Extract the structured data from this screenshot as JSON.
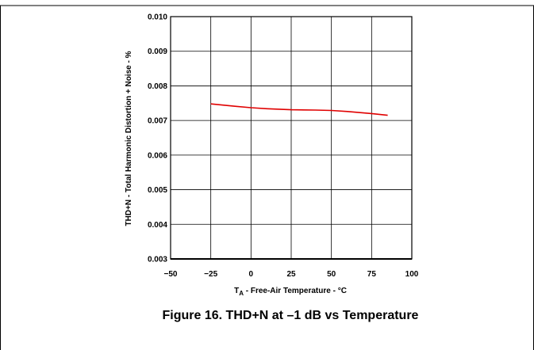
{
  "chart_data": {
    "type": "line",
    "title": "",
    "caption": "Figure 16. THD+N at –1 dB vs Temperature",
    "xlabel_main": "T",
    "xlabel_sub": "A",
    "xlabel_rest": " - Free-Air Temperature - °C",
    "ylabel": "THD+N - Total Harmonic Distortion + Noise - %",
    "xlim": [
      -50,
      100
    ],
    "ylim": [
      0.003,
      0.01
    ],
    "x_ticks": [
      -50,
      -25,
      0,
      25,
      50,
      75,
      100
    ],
    "x_tick_labels": [
      "−50",
      "−25",
      "0",
      "25",
      "50",
      "75",
      "100"
    ],
    "y_ticks": [
      0.003,
      0.004,
      0.005,
      0.006,
      0.007,
      0.008,
      0.009,
      0.01
    ],
    "y_tick_labels": [
      "0.003",
      "0.004",
      "0.005",
      "0.006",
      "0.007",
      "0.008",
      "0.009",
      "0.010"
    ],
    "grid": true,
    "legend": "none",
    "series": [
      {
        "color": "#e00000",
        "x": [
          -25,
          -10,
          0,
          10,
          25,
          40,
          50,
          60,
          75,
          85
        ],
        "y": [
          0.00748,
          0.00741,
          0.00737,
          0.00734,
          0.00731,
          0.0073,
          0.00729,
          0.00726,
          0.0072,
          0.00715
        ]
      }
    ]
  }
}
